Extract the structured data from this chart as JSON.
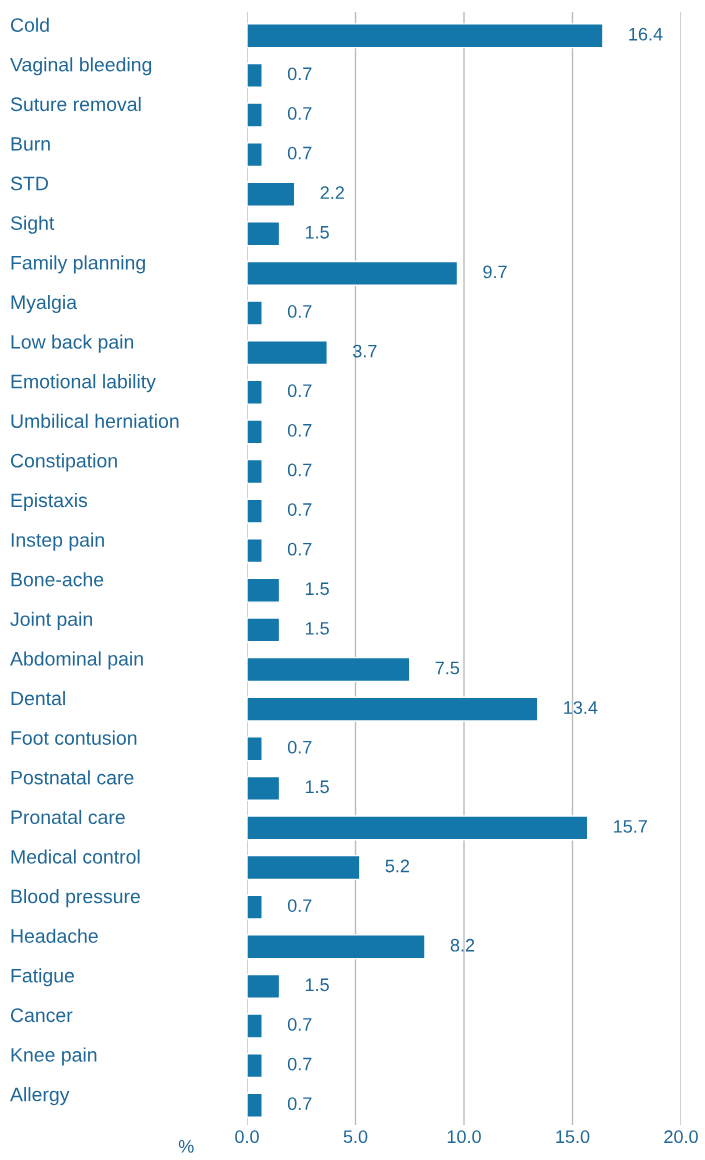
{
  "chart_data": {
    "type": "bar",
    "orientation": "horizontal",
    "xlabel": "%",
    "categories": [
      "Cold",
      "Vaginal bleeding",
      "Suture removal",
      "Burn",
      "STD",
      "Sight",
      "Family planning",
      "Myalgia",
      "Low back pain",
      "Emotional lability",
      "Umbilical herniation",
      "Constipation",
      "Epistaxis",
      "Instep pain",
      "Bone-ache",
      "Joint pain",
      "Abdominal pain",
      "Dental",
      "Foot contusion",
      "Postnatal care",
      "Pronatal care",
      "Medical control",
      "Blood pressure",
      "Headache",
      "Fatigue",
      "Cancer",
      "Knee pain",
      "Allergy"
    ],
    "values": [
      16.4,
      0.7,
      0.7,
      0.7,
      2.2,
      1.5,
      9.7,
      0.7,
      3.7,
      0.7,
      0.7,
      0.7,
      0.7,
      0.7,
      1.5,
      1.5,
      7.5,
      13.4,
      0.7,
      1.5,
      15.7,
      5.2,
      0.7,
      8.2,
      1.5,
      0.7,
      0.7,
      0.7
    ],
    "color": "#1477aa",
    "data_labels": true,
    "grid": "x",
    "xlim": [
      0,
      20
    ],
    "xticks": [
      {
        "value": 0,
        "label": "0.0"
      },
      {
        "value": 5,
        "label": "5.0"
      },
      {
        "value": 10,
        "label": "10.0"
      },
      {
        "value": 15,
        "label": "15.0"
      },
      {
        "value": 20,
        "label": "20.0"
      }
    ]
  }
}
